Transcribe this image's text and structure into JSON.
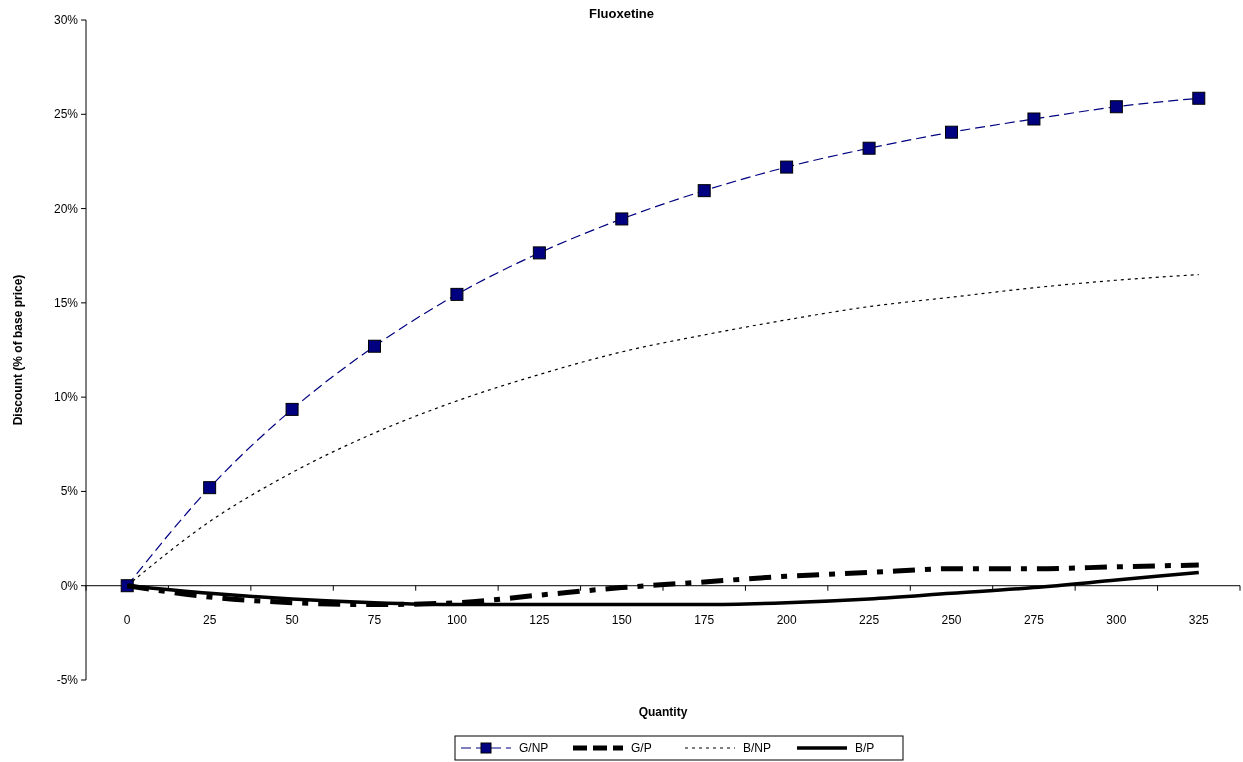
{
  "chart_data": {
    "type": "line",
    "title": "Fluoxetine",
    "xlabel": "Quantity",
    "ylabel": "Discount (% of base price)",
    "categories": [
      "0",
      "25",
      "50",
      "75",
      "100",
      "125",
      "150",
      "175",
      "200",
      "225",
      "250",
      "275",
      "300",
      "325"
    ],
    "series": [
      {
        "name": "G/NP",
        "color": "#000080",
        "marker": "square",
        "line_style": "dashed",
        "values": [
          0,
          5.2,
          9.35,
          12.7,
          15.45,
          17.65,
          19.45,
          20.95,
          22.2,
          23.2,
          24.05,
          24.75,
          25.4,
          25.85
        ]
      },
      {
        "name": "G/P",
        "color": "#000000",
        "marker": "none",
        "line_style": "dashed",
        "values": [
          0,
          -0.6,
          -0.9,
          -1.0,
          -0.9,
          -0.5,
          -0.1,
          0.2,
          0.5,
          0.7,
          0.9,
          0.9,
          1.0,
          1.1
        ]
      },
      {
        "name": "B/NP",
        "color": "#000000",
        "marker": "none",
        "line_style": "dotted",
        "values": [
          0,
          3.4,
          6.0,
          8.1,
          9.8,
          11.2,
          12.4,
          13.3,
          14.1,
          14.8,
          15.3,
          15.8,
          16.2,
          16.5
        ]
      },
      {
        "name": "B/P",
        "color": "#000000",
        "marker": "none",
        "line_style": "solid",
        "values": [
          0,
          -0.4,
          -0.7,
          -0.9,
          -1.0,
          -1.0,
          -1.0,
          -1.0,
          -0.9,
          -0.7,
          -0.4,
          -0.1,
          0.3,
          0.7
        ]
      }
    ],
    "ylim": [
      -5,
      30
    ],
    "yticks": [
      {
        "value": -5,
        "label": "-5%"
      },
      {
        "value": 0,
        "label": "0%"
      },
      {
        "value": 5,
        "label": "5%"
      },
      {
        "value": 10,
        "label": "10%"
      },
      {
        "value": 15,
        "label": "15%"
      },
      {
        "value": 20,
        "label": "20%"
      },
      {
        "value": 25,
        "label": "25%"
      },
      {
        "value": 30,
        "label": "30%"
      }
    ],
    "grid": false,
    "legend": "bottom"
  }
}
